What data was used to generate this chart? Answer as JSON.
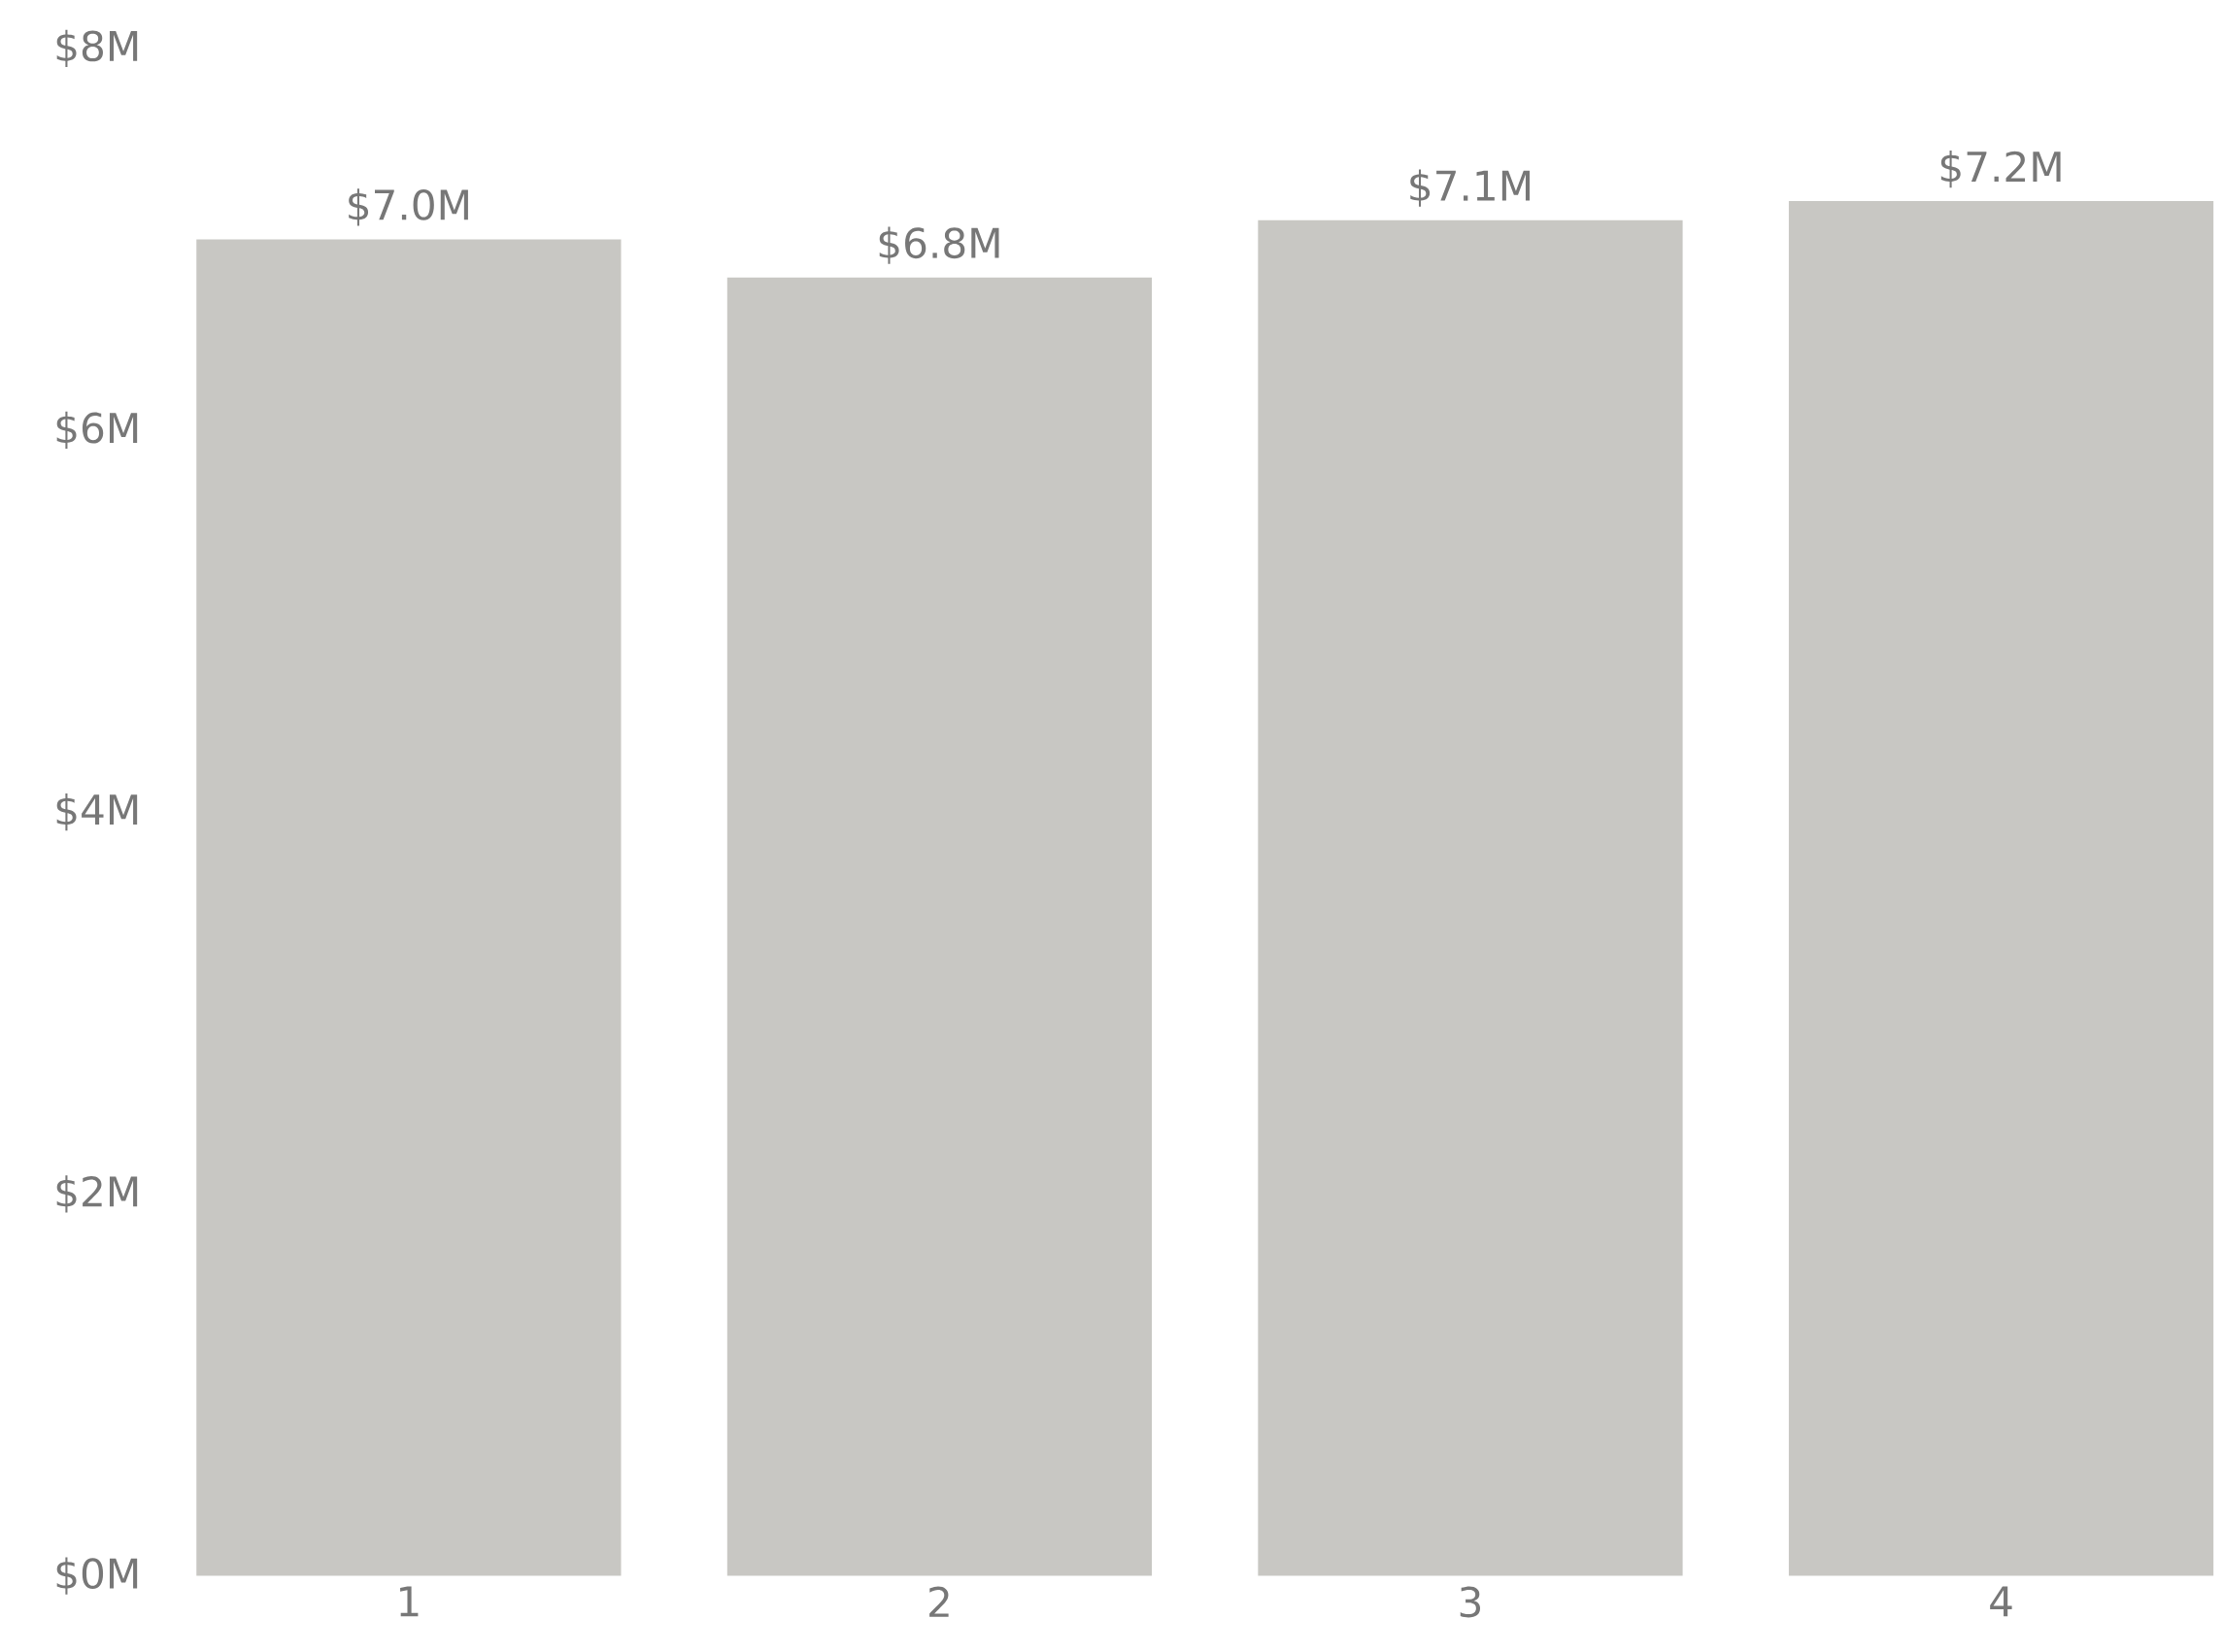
{
  "chart_data": {
    "type": "bar",
    "categories": [
      "1",
      "2",
      "3",
      "4"
    ],
    "values": [
      7.0,
      6.8,
      7.1,
      7.2
    ],
    "value_labels": [
      "$7.0M",
      "$6.8M",
      "$7.1M",
      "$7.2M"
    ],
    "color": "#c8c7c3",
    "ylim": [
      0,
      8
    ],
    "yticks": [
      {
        "value": 0,
        "label": "$0M"
      },
      {
        "value": 2,
        "label": "$2M"
      },
      {
        "value": 4,
        "label": "$4M"
      },
      {
        "value": 6,
        "label": "$6M"
      },
      {
        "value": 8,
        "label": "$8M"
      }
    ],
    "grid": false
  }
}
